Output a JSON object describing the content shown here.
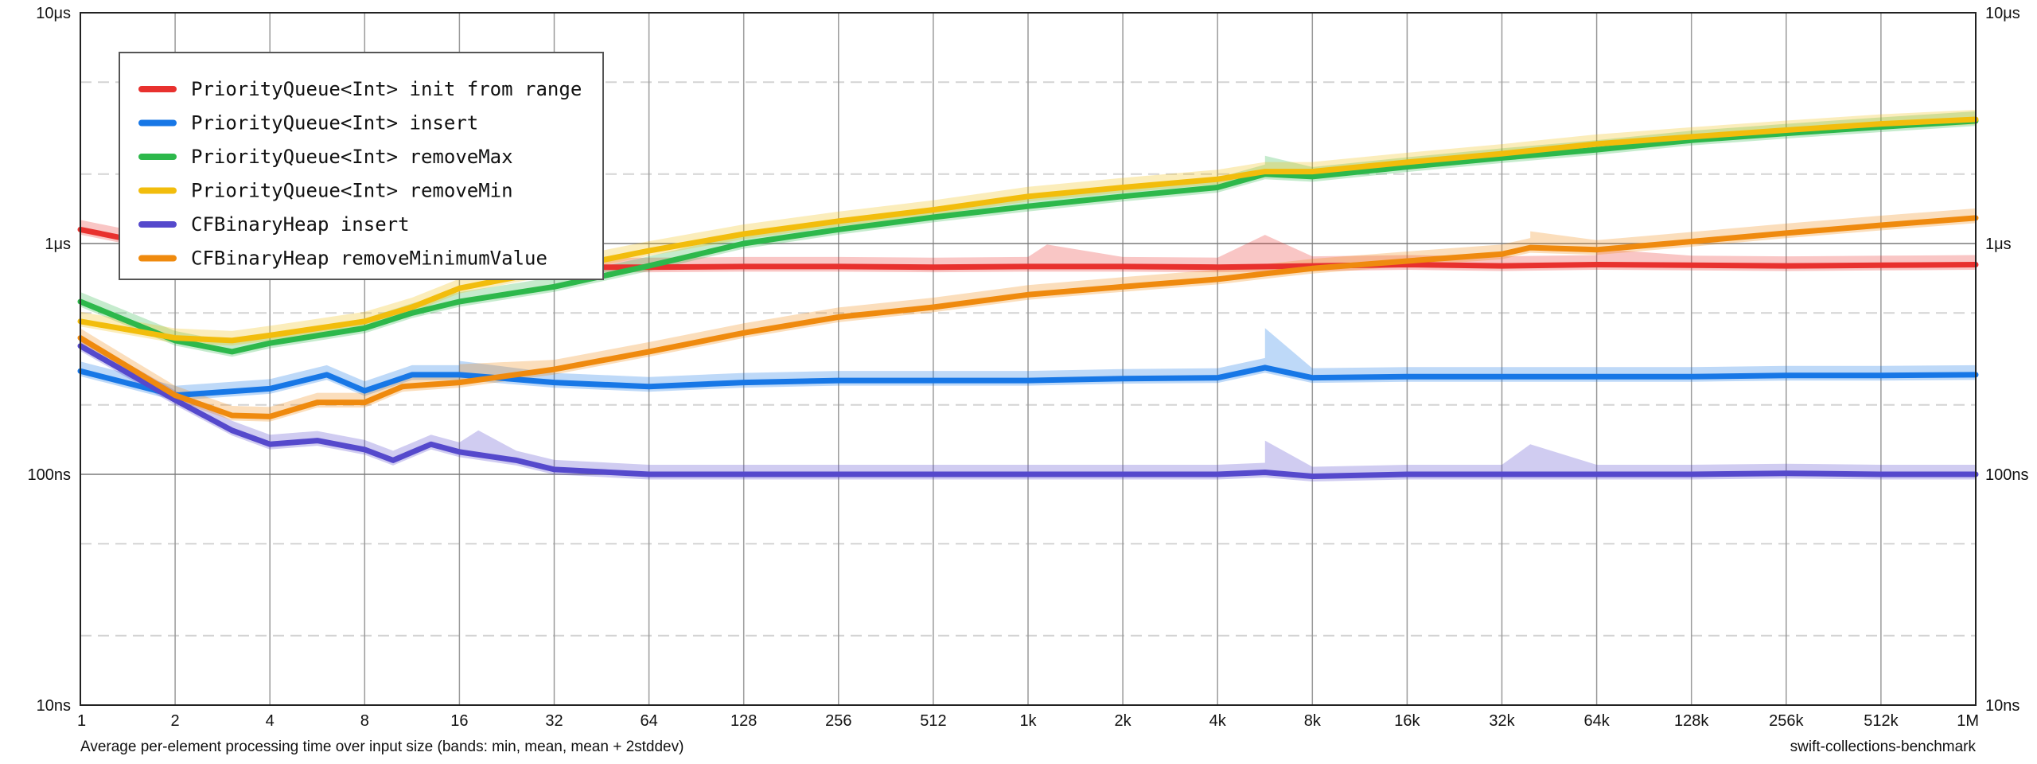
{
  "chart_data": {
    "type": "line",
    "x_scale": "log2",
    "y_scale": "log10",
    "x_ticks": [
      "1",
      "2",
      "4",
      "8",
      "16",
      "32",
      "64",
      "128",
      "256",
      "512",
      "1k",
      "2k",
      "4k",
      "8k",
      "16k",
      "32k",
      "64k",
      "128k",
      "256k",
      "512k",
      "1M"
    ],
    "y_ticks": [
      {
        "value": 10,
        "label": "10ns"
      },
      {
        "value": 100,
        "label": "100ns"
      },
      {
        "value": 1000,
        "label": "1μs"
      },
      {
        "value": 10000,
        "label": "10μs"
      }
    ],
    "y_unit": "ns",
    "ylim": [
      10,
      10000
    ],
    "xlim": [
      0,
      20
    ],
    "grid": true,
    "legend_position": "top-left",
    "footer_left": "Average per-element processing time over input size (bands: min, mean, mean + 2stddev)",
    "footer_right": "swift-collections-benchmark",
    "series": [
      {
        "name": "PriorityQueue<Int> init from range",
        "color": "#e8312e",
        "points": [
          [
            0,
            1150
          ],
          [
            1,
            950
          ],
          [
            2,
            880
          ],
          [
            3,
            830
          ],
          [
            4,
            800
          ],
          [
            5,
            790
          ],
          [
            6,
            790
          ],
          [
            7,
            795
          ],
          [
            8,
            795
          ],
          [
            9,
            790
          ],
          [
            10,
            795
          ],
          [
            11,
            795
          ],
          [
            12,
            790
          ],
          [
            13,
            800
          ],
          [
            14,
            810
          ],
          [
            15,
            800
          ],
          [
            16,
            810
          ],
          [
            17,
            805
          ],
          [
            18,
            800
          ],
          [
            19,
            805
          ],
          [
            20,
            810
          ]
        ],
        "band_spikes": [
          [
            10.2,
            990
          ],
          [
            12.5,
            1090
          ],
          [
            16,
            950
          ]
        ]
      },
      {
        "name": "PriorityQueue<Int> insert",
        "color": "#1777e6",
        "points": [
          [
            0,
            280
          ],
          [
            1,
            220
          ],
          [
            2,
            235
          ],
          [
            2.6,
            270
          ],
          [
            3,
            230
          ],
          [
            3.5,
            270
          ],
          [
            4,
            270
          ],
          [
            5,
            250
          ],
          [
            6,
            240
          ],
          [
            7,
            250
          ],
          [
            8,
            255
          ],
          [
            9,
            255
          ],
          [
            10,
            255
          ],
          [
            11,
            260
          ],
          [
            12,
            262
          ],
          [
            12.5,
            290
          ],
          [
            13,
            262
          ],
          [
            14,
            265
          ],
          [
            15,
            265
          ],
          [
            16,
            265
          ],
          [
            17,
            265
          ],
          [
            18,
            268
          ],
          [
            19,
            268
          ],
          [
            20,
            270
          ]
        ],
        "band_spikes": [
          [
            12.5,
            430
          ],
          [
            4,
            310
          ]
        ]
      },
      {
        "name": "PriorityQueue<Int> removeMax",
        "color": "#2db84b",
        "points": [
          [
            0,
            560
          ],
          [
            1,
            380
          ],
          [
            1.6,
            340
          ],
          [
            2,
            370
          ],
          [
            3,
            430
          ],
          [
            3.5,
            500
          ],
          [
            4,
            560
          ],
          [
            5,
            650
          ],
          [
            6,
            800
          ],
          [
            7,
            1000
          ],
          [
            8,
            1150
          ],
          [
            9,
            1300
          ],
          [
            10,
            1450
          ],
          [
            11,
            1600
          ],
          [
            12,
            1750
          ],
          [
            12.5,
            2000
          ],
          [
            13,
            1950
          ],
          [
            14,
            2150
          ],
          [
            15,
            2350
          ],
          [
            16,
            2550
          ],
          [
            17,
            2800
          ],
          [
            18,
            3000
          ],
          [
            19,
            3200
          ],
          [
            20,
            3400
          ]
        ],
        "band_spikes": [
          [
            12.5,
            2400
          ]
        ]
      },
      {
        "name": "PriorityQueue<Int> removeMin",
        "color": "#f2bd0c",
        "points": [
          [
            0,
            460
          ],
          [
            1,
            390
          ],
          [
            1.6,
            380
          ],
          [
            2,
            400
          ],
          [
            3,
            460
          ],
          [
            3.5,
            530
          ],
          [
            4,
            640
          ],
          [
            5,
            770
          ],
          [
            6,
            930
          ],
          [
            7,
            1100
          ],
          [
            8,
            1250
          ],
          [
            9,
            1400
          ],
          [
            10,
            1600
          ],
          [
            11,
            1750
          ],
          [
            12,
            1900
          ],
          [
            12.5,
            2050
          ],
          [
            13,
            2050
          ],
          [
            14,
            2250
          ],
          [
            15,
            2450
          ],
          [
            16,
            2700
          ],
          [
            17,
            2900
          ],
          [
            18,
            3100
          ],
          [
            19,
            3300
          ],
          [
            20,
            3450
          ]
        ],
        "band_spikes": []
      },
      {
        "name": "CFBinaryHeap insert",
        "color": "#5549cc",
        "points": [
          [
            0,
            360
          ],
          [
            1,
            210
          ],
          [
            1.6,
            155
          ],
          [
            2,
            135
          ],
          [
            2.5,
            140
          ],
          [
            3,
            128
          ],
          [
            3.3,
            115
          ],
          [
            3.7,
            135
          ],
          [
            4,
            125
          ],
          [
            4.6,
            115
          ],
          [
            5,
            105
          ],
          [
            6,
            100
          ],
          [
            7,
            100
          ],
          [
            8,
            100
          ],
          [
            9,
            100
          ],
          [
            10,
            100
          ],
          [
            11,
            100
          ],
          [
            12,
            100
          ],
          [
            12.5,
            102
          ],
          [
            13,
            98
          ],
          [
            14,
            100
          ],
          [
            15,
            100
          ],
          [
            16,
            100
          ],
          [
            17,
            100
          ],
          [
            18,
            101
          ],
          [
            19,
            100
          ],
          [
            20,
            100
          ]
        ],
        "band_spikes": [
          [
            4.2,
            155
          ],
          [
            12.5,
            140
          ],
          [
            15.3,
            135
          ]
        ]
      },
      {
        "name": "CFBinaryHeap removeMinimumValue",
        "color": "#ef8a0e",
        "points": [
          [
            0,
            390
          ],
          [
            1,
            220
          ],
          [
            1.6,
            180
          ],
          [
            2,
            178
          ],
          [
            2.5,
            205
          ],
          [
            3,
            205
          ],
          [
            3.4,
            240
          ],
          [
            4,
            250
          ],
          [
            5,
            285
          ],
          [
            6,
            340
          ],
          [
            7,
            410
          ],
          [
            8,
            480
          ],
          [
            9,
            530
          ],
          [
            10,
            600
          ],
          [
            11,
            650
          ],
          [
            12,
            700
          ],
          [
            12.5,
            740
          ],
          [
            13,
            780
          ],
          [
            14,
            840
          ],
          [
            15,
            900
          ],
          [
            15.3,
            960
          ],
          [
            16,
            940
          ],
          [
            17,
            1020
          ],
          [
            18,
            1110
          ],
          [
            19,
            1200
          ],
          [
            20,
            1290
          ]
        ],
        "band_spikes": [
          [
            15.3,
            1130
          ],
          [
            4,
            300
          ]
        ]
      }
    ]
  }
}
